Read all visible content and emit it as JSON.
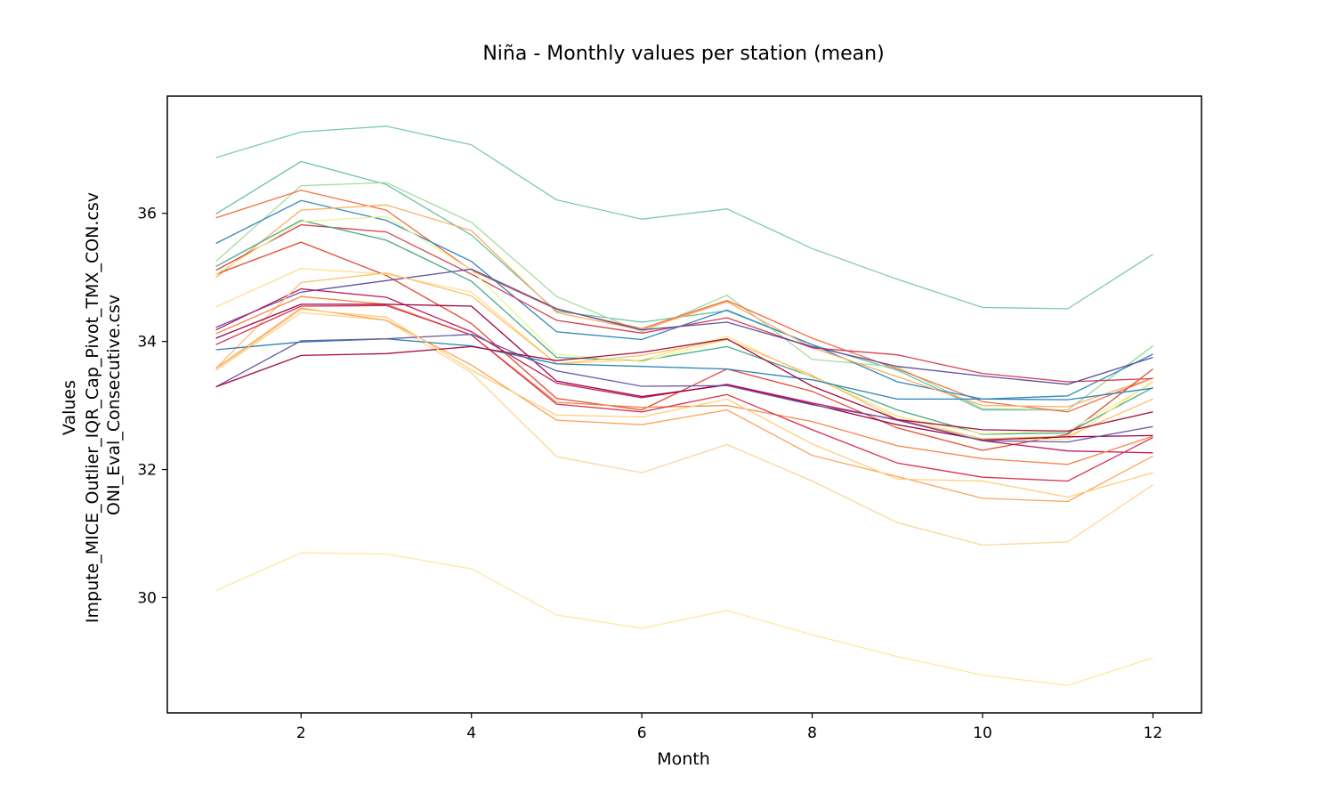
{
  "chart_data": {
    "type": "line",
    "title": "Niña - Monthly values per station (mean)",
    "xlabel": "Month",
    "ylabel_lines": [
      "Values",
      "Impute_MICE_Outlier_IQR_Cap_Pivot_TMX_CON.csv",
      "ONI_Eval_Consecutive.csv"
    ],
    "x": [
      1,
      2,
      3,
      4,
      5,
      6,
      7,
      8,
      9,
      10,
      11,
      12
    ],
    "xlim": [
      0.43,
      12.57
    ],
    "ylim": [
      28.2,
      37.83
    ],
    "xticks": [
      2,
      4,
      6,
      8,
      10,
      12
    ],
    "yticks": [
      30,
      32,
      34,
      36
    ],
    "grid": false,
    "series": [
      {
        "color": "#80cba4",
        "values": [
          36.87,
          37.27,
          37.36,
          37.07,
          36.21,
          35.91,
          36.07,
          35.45,
          34.97,
          34.53,
          34.51,
          35.36
        ]
      },
      {
        "color": "#66c2a5",
        "values": [
          35.99,
          36.81,
          36.45,
          35.66,
          34.47,
          34.3,
          34.48,
          33.95,
          33.55,
          32.93,
          32.93,
          33.93
        ]
      },
      {
        "color": "#a6dba0",
        "values": [
          35.25,
          36.43,
          36.48,
          35.86,
          34.7,
          34.15,
          34.72,
          33.72,
          33.6,
          32.95,
          32.93,
          33.93
        ]
      },
      {
        "color": "#f46d43",
        "values": [
          35.93,
          36.36,
          36.05,
          35.11,
          34.5,
          34.2,
          34.64,
          34.05,
          33.57,
          33.06,
          32.9,
          33.43
        ]
      },
      {
        "color": "#3288bd",
        "values": [
          35.53,
          36.2,
          35.89,
          35.25,
          34.15,
          34.03,
          34.49,
          33.95,
          33.37,
          33.1,
          33.15,
          33.8
        ]
      },
      {
        "color": "#fdae61",
        "values": [
          35.0,
          36.05,
          36.13,
          35.73,
          34.45,
          34.18,
          34.62,
          33.9,
          33.45,
          33.0,
          32.98,
          33.43
        ]
      },
      {
        "color": "#d53e4f",
        "values": [
          35.11,
          35.82,
          35.71,
          35.05,
          34.33,
          34.13,
          34.37,
          33.9,
          33.79,
          33.5,
          33.37,
          33.42
        ]
      },
      {
        "color": "#4ba886",
        "values": [
          35.17,
          35.89,
          35.58,
          34.94,
          33.75,
          33.7,
          33.92,
          33.45,
          32.93,
          32.55,
          32.57,
          33.28
        ]
      },
      {
        "color": "#e34a33",
        "values": [
          35.05,
          35.55,
          35.03,
          34.28,
          33.11,
          32.93,
          33.57,
          33.22,
          32.65,
          32.3,
          32.55,
          33.57
        ]
      },
      {
        "color": "#e6f598",
        "values": [
          35.05,
          35.87,
          35.95,
          35.11,
          33.8,
          33.68,
          34.03,
          33.47,
          32.83,
          32.56,
          32.6,
          33.35
        ]
      },
      {
        "color": "#fee08b",
        "values": [
          34.54,
          35.14,
          35.05,
          34.77,
          33.65,
          33.71,
          34.08,
          33.44,
          32.84,
          32.47,
          32.47,
          33.38
        ]
      },
      {
        "color": "#5e4fa2",
        "values": [
          34.22,
          34.77,
          34.95,
          35.13,
          34.51,
          34.18,
          34.3,
          33.92,
          33.61,
          33.46,
          33.33,
          33.75
        ]
      },
      {
        "color": "#c2185b",
        "values": [
          34.18,
          34.82,
          34.69,
          34.15,
          33.35,
          33.12,
          33.33,
          33.04,
          32.77,
          32.45,
          32.29,
          32.26
        ]
      },
      {
        "color": "#fdbf6f",
        "values": [
          33.58,
          34.92,
          35.07,
          34.71,
          33.65,
          33.78,
          34.03,
          33.47,
          32.78,
          32.48,
          32.52,
          33.1
        ]
      },
      {
        "color": "#f08a4b",
        "values": [
          34.12,
          34.7,
          34.58,
          34.1,
          33.05,
          32.97,
          33.0,
          32.75,
          32.37,
          32.17,
          32.08,
          32.52
        ]
      },
      {
        "color": "#9e0142",
        "values": [
          34.05,
          34.58,
          34.58,
          34.55,
          33.38,
          33.14,
          33.32,
          33.02,
          32.7,
          32.46,
          32.51,
          32.53
        ]
      },
      {
        "color": "#fdd49e",
        "values": [
          33.55,
          34.45,
          34.33,
          33.51,
          32.2,
          31.95,
          32.39,
          31.82,
          31.17,
          30.82,
          30.87,
          31.76
        ]
      },
      {
        "color": "#fca35d",
        "values": [
          33.58,
          34.52,
          34.33,
          33.63,
          32.77,
          32.7,
          32.93,
          32.22,
          31.89,
          31.55,
          31.5,
          32.21
        ]
      },
      {
        "color": "#d9304f",
        "values": [
          33.95,
          34.55,
          34.56,
          34.1,
          33.02,
          32.9,
          33.17,
          32.62,
          32.1,
          31.88,
          31.82,
          32.5
        ]
      },
      {
        "color": "#2b83ba",
        "values": [
          33.87,
          33.99,
          34.04,
          33.93,
          33.65,
          33.61,
          33.57,
          33.4,
          33.1,
          33.1,
          33.09,
          33.27
        ]
      },
      {
        "color": "#6a5aa8",
        "values": [
          33.29,
          34.01,
          34.04,
          34.11,
          33.54,
          33.3,
          33.31,
          33.01,
          32.78,
          32.45,
          32.43,
          32.67
        ]
      },
      {
        "color": "#a50f3c",
        "values": [
          33.29,
          33.78,
          33.81,
          33.92,
          33.7,
          33.83,
          34.04,
          33.3,
          32.78,
          32.62,
          32.6,
          32.9
        ]
      },
      {
        "color": "#fdcf7a",
        "values": [
          33.55,
          34.5,
          34.38,
          33.55,
          32.85,
          32.82,
          33.1,
          32.4,
          31.85,
          31.82,
          31.57,
          31.95
        ]
      },
      {
        "color": "#fee8a0",
        "values": [
          30.11,
          30.7,
          30.68,
          30.45,
          29.73,
          29.52,
          29.8,
          29.42,
          29.08,
          28.79,
          28.63,
          29.06
        ]
      }
    ]
  }
}
